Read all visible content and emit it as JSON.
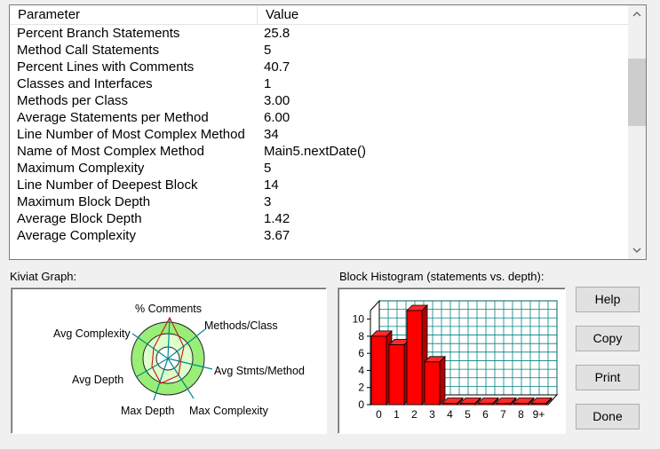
{
  "table": {
    "columns": [
      "Parameter",
      "Value"
    ],
    "rows": [
      [
        "Percent Branch Statements",
        "25.8"
      ],
      [
        "Method Call Statements",
        "5"
      ],
      [
        "Percent Lines with Comments",
        "40.7"
      ],
      [
        "Classes and Interfaces",
        "1"
      ],
      [
        "Methods per Class",
        "3.00"
      ],
      [
        "Average Statements per Method",
        "6.00"
      ],
      [
        "Line Number of Most Complex Method",
        "34"
      ],
      [
        "Name of Most Complex Method",
        "Main5.nextDate()"
      ],
      [
        "Maximum Complexity",
        "5"
      ],
      [
        "Line Number of Deepest Block",
        "14"
      ],
      [
        "Maximum Block Depth",
        "3"
      ],
      [
        "Average Block Depth",
        "1.42"
      ],
      [
        "Average Complexity",
        "3.67"
      ]
    ]
  },
  "kiviat": {
    "title": "Kiviat Graph:",
    "axes": [
      "% Comments",
      "Methods/Class",
      "Avg Stmts/Method",
      "Max Complexity",
      "Max Depth",
      "Avg Depth",
      "Avg Complexity"
    ]
  },
  "histogram": {
    "title": "Block Histogram (statements vs. depth):"
  },
  "chart_data": {
    "type": "bar",
    "categories": [
      "0",
      "1",
      "2",
      "3",
      "4",
      "5",
      "6",
      "7",
      "8",
      "9+"
    ],
    "values": [
      8,
      7,
      11,
      5,
      0,
      0,
      0,
      0,
      0,
      0
    ],
    "xlabel": "",
    "ylabel": "",
    "ylim": [
      0,
      11
    ],
    "yticks": [
      "0",
      "2",
      "4",
      "6",
      "8",
      "10"
    ],
    "grid": true,
    "bar_color": "#ff0000"
  },
  "buttons": {
    "help": "Help",
    "copy": "Copy",
    "print": "Print",
    "done": "Done"
  },
  "icons": {
    "scroll_up": "chevron-up-icon",
    "scroll_down": "chevron-down-icon"
  }
}
